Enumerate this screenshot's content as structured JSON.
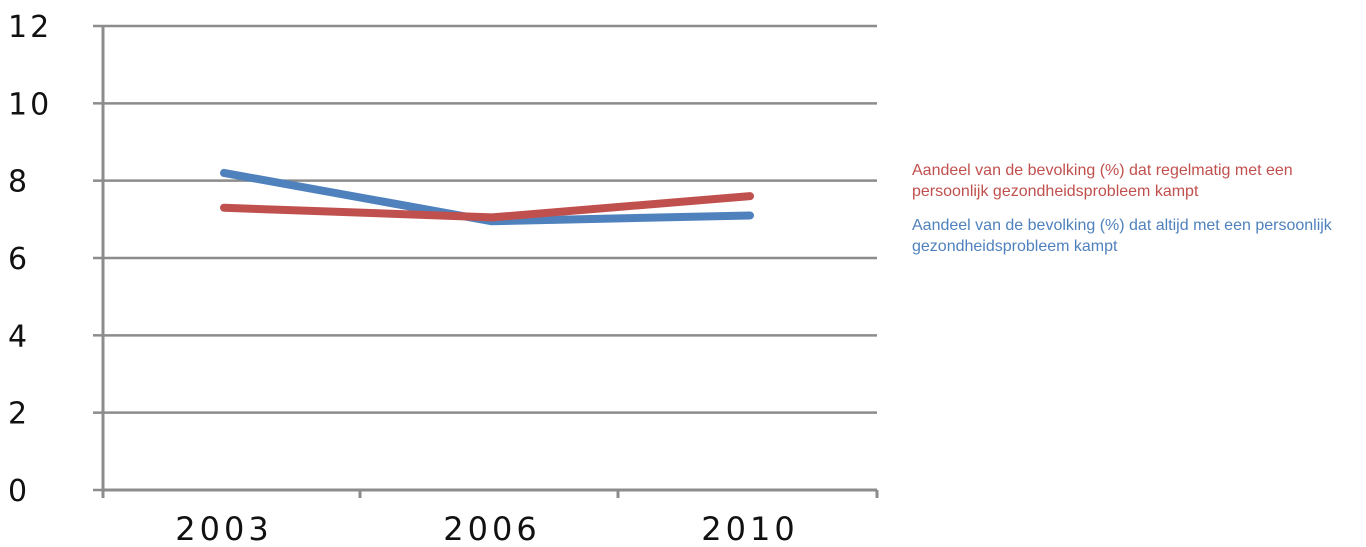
{
  "chart_data": {
    "type": "line",
    "title": "",
    "xlabel": "",
    "ylabel": "",
    "categories": [
      "2003",
      "2006",
      "2010"
    ],
    "ylim": [
      0,
      12
    ],
    "yticks": [
      "0",
      "2",
      "4",
      "6",
      "8",
      "10",
      "12"
    ],
    "grid": true,
    "legend_position": "right",
    "series": [
      {
        "name": "Aandeel van de bevolking (%) dat regelmatig met een persoonlijk gezondheidsprobleem kampt",
        "values": [
          7.3,
          7.05,
          7.6
        ],
        "color": "#c0504d"
      },
      {
        "name": "Aandeel van de bevolking (%) dat altijd met een persoonlijk gezondheidsprobleem kampt",
        "values": [
          8.2,
          6.95,
          7.1
        ],
        "color": "#4f81bd"
      }
    ]
  }
}
